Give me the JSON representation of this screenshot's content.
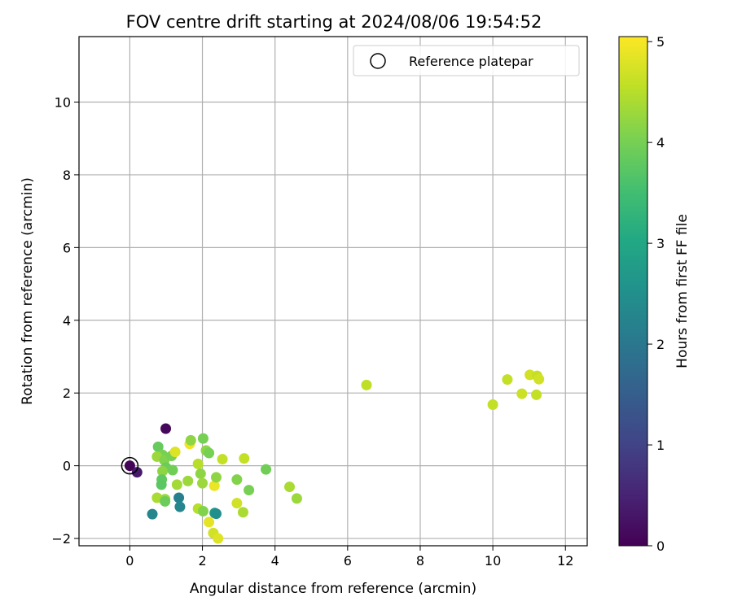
{
  "chart_data": {
    "type": "scatter",
    "title": "FOV centre drift starting at 2024/08/06 19:54:52",
    "xlabel": "Angular distance from reference (arcmin)",
    "ylabel": "Rotation from reference (arcmin)",
    "xlim": [
      -1.4,
      12.6
    ],
    "ylim": [
      -2.2,
      11.8
    ],
    "xticks": [
      0,
      2,
      4,
      6,
      8,
      10,
      12
    ],
    "yticks": [
      -2,
      0,
      2,
      4,
      6,
      8,
      10
    ],
    "grid": true,
    "legend": {
      "position": "top-right",
      "entries": [
        "Reference platepar"
      ]
    },
    "reference_point": {
      "x": 0,
      "y": 0
    },
    "colorbar": {
      "label": "Hours from first FF file",
      "min": 0,
      "max": 5.05,
      "ticks": [
        0,
        1,
        2,
        3,
        4,
        5
      ],
      "colormap": "viridis"
    },
    "points": [
      {
        "x": 0.0,
        "y": 0.0,
        "c": 0.05
      },
      {
        "x": 0.2,
        "y": -0.18,
        "c": 0.35
      },
      {
        "x": 0.99,
        "y": 1.02,
        "c": 0.1
      },
      {
        "x": 0.62,
        "y": -1.33,
        "c": 2.3
      },
      {
        "x": 1.35,
        "y": -0.88,
        "c": 2.2
      },
      {
        "x": 1.38,
        "y": -1.13,
        "c": 2.3
      },
      {
        "x": 2.34,
        "y": -1.3,
        "c": 2.7
      },
      {
        "x": 2.38,
        "y": -1.32,
        "c": 2.5
      },
      {
        "x": 0.78,
        "y": 0.52,
        "c": 3.85
      },
      {
        "x": 0.9,
        "y": 0.3,
        "c": 4.0
      },
      {
        "x": 0.75,
        "y": 0.25,
        "c": 4.3
      },
      {
        "x": 0.95,
        "y": 0.15,
        "c": 4.1
      },
      {
        "x": 1.0,
        "y": -0.05,
        "c": 3.9
      },
      {
        "x": 0.9,
        "y": -0.15,
        "c": 4.2
      },
      {
        "x": 0.88,
        "y": -0.38,
        "c": 3.8
      },
      {
        "x": 0.87,
        "y": -0.52,
        "c": 3.75
      },
      {
        "x": 1.15,
        "y": 0.27,
        "c": 4.0
      },
      {
        "x": 1.18,
        "y": -0.12,
        "c": 3.95
      },
      {
        "x": 1.25,
        "y": 0.38,
        "c": 4.8
      },
      {
        "x": 1.3,
        "y": -0.52,
        "c": 4.35
      },
      {
        "x": 0.75,
        "y": -0.88,
        "c": 4.4
      },
      {
        "x": 0.97,
        "y": -0.92,
        "c": 4.3
      },
      {
        "x": 0.97,
        "y": -0.98,
        "c": 3.9
      },
      {
        "x": 1.6,
        "y": -0.42,
        "c": 4.3
      },
      {
        "x": 1.65,
        "y": 0.6,
        "c": 4.95
      },
      {
        "x": 1.68,
        "y": 0.7,
        "c": 4.2
      },
      {
        "x": 1.88,
        "y": 0.05,
        "c": 4.5
      },
      {
        "x": 1.95,
        "y": -0.22,
        "c": 4.2
      },
      {
        "x": 2.0,
        "y": -0.48,
        "c": 4.3
      },
      {
        "x": 2.02,
        "y": 0.75,
        "c": 4.0
      },
      {
        "x": 2.1,
        "y": 0.42,
        "c": 4.2
      },
      {
        "x": 2.18,
        "y": 0.35,
        "c": 4.0
      },
      {
        "x": 1.88,
        "y": -1.18,
        "c": 4.5
      },
      {
        "x": 2.02,
        "y": -1.25,
        "c": 4.1
      },
      {
        "x": 2.18,
        "y": -1.55,
        "c": 4.85
      },
      {
        "x": 2.3,
        "y": -1.85,
        "c": 4.7
      },
      {
        "x": 2.43,
        "y": -2.0,
        "c": 4.8
      },
      {
        "x": 2.33,
        "y": -0.55,
        "c": 4.9
      },
      {
        "x": 2.38,
        "y": -0.32,
        "c": 4.2
      },
      {
        "x": 2.55,
        "y": 0.18,
        "c": 4.6
      },
      {
        "x": 2.95,
        "y": -0.38,
        "c": 4.1
      },
      {
        "x": 2.95,
        "y": -1.03,
        "c": 4.7
      },
      {
        "x": 3.15,
        "y": 0.2,
        "c": 4.6
      },
      {
        "x": 3.12,
        "y": -1.28,
        "c": 4.4
      },
      {
        "x": 3.28,
        "y": -0.67,
        "c": 4.0
      },
      {
        "x": 3.75,
        "y": -0.1,
        "c": 3.95
      },
      {
        "x": 4.4,
        "y": -0.58,
        "c": 4.4
      },
      {
        "x": 4.6,
        "y": -0.9,
        "c": 4.3
      },
      {
        "x": 6.52,
        "y": 2.22,
        "c": 4.55
      },
      {
        "x": 10.0,
        "y": 1.68,
        "c": 4.6
      },
      {
        "x": 10.4,
        "y": 2.37,
        "c": 4.6
      },
      {
        "x": 10.8,
        "y": 1.98,
        "c": 4.65
      },
      {
        "x": 11.02,
        "y": 2.5,
        "c": 4.7
      },
      {
        "x": 11.22,
        "y": 2.47,
        "c": 4.6
      },
      {
        "x": 11.27,
        "y": 2.38,
        "c": 4.7
      },
      {
        "x": 11.2,
        "y": 1.95,
        "c": 4.6
      }
    ]
  }
}
